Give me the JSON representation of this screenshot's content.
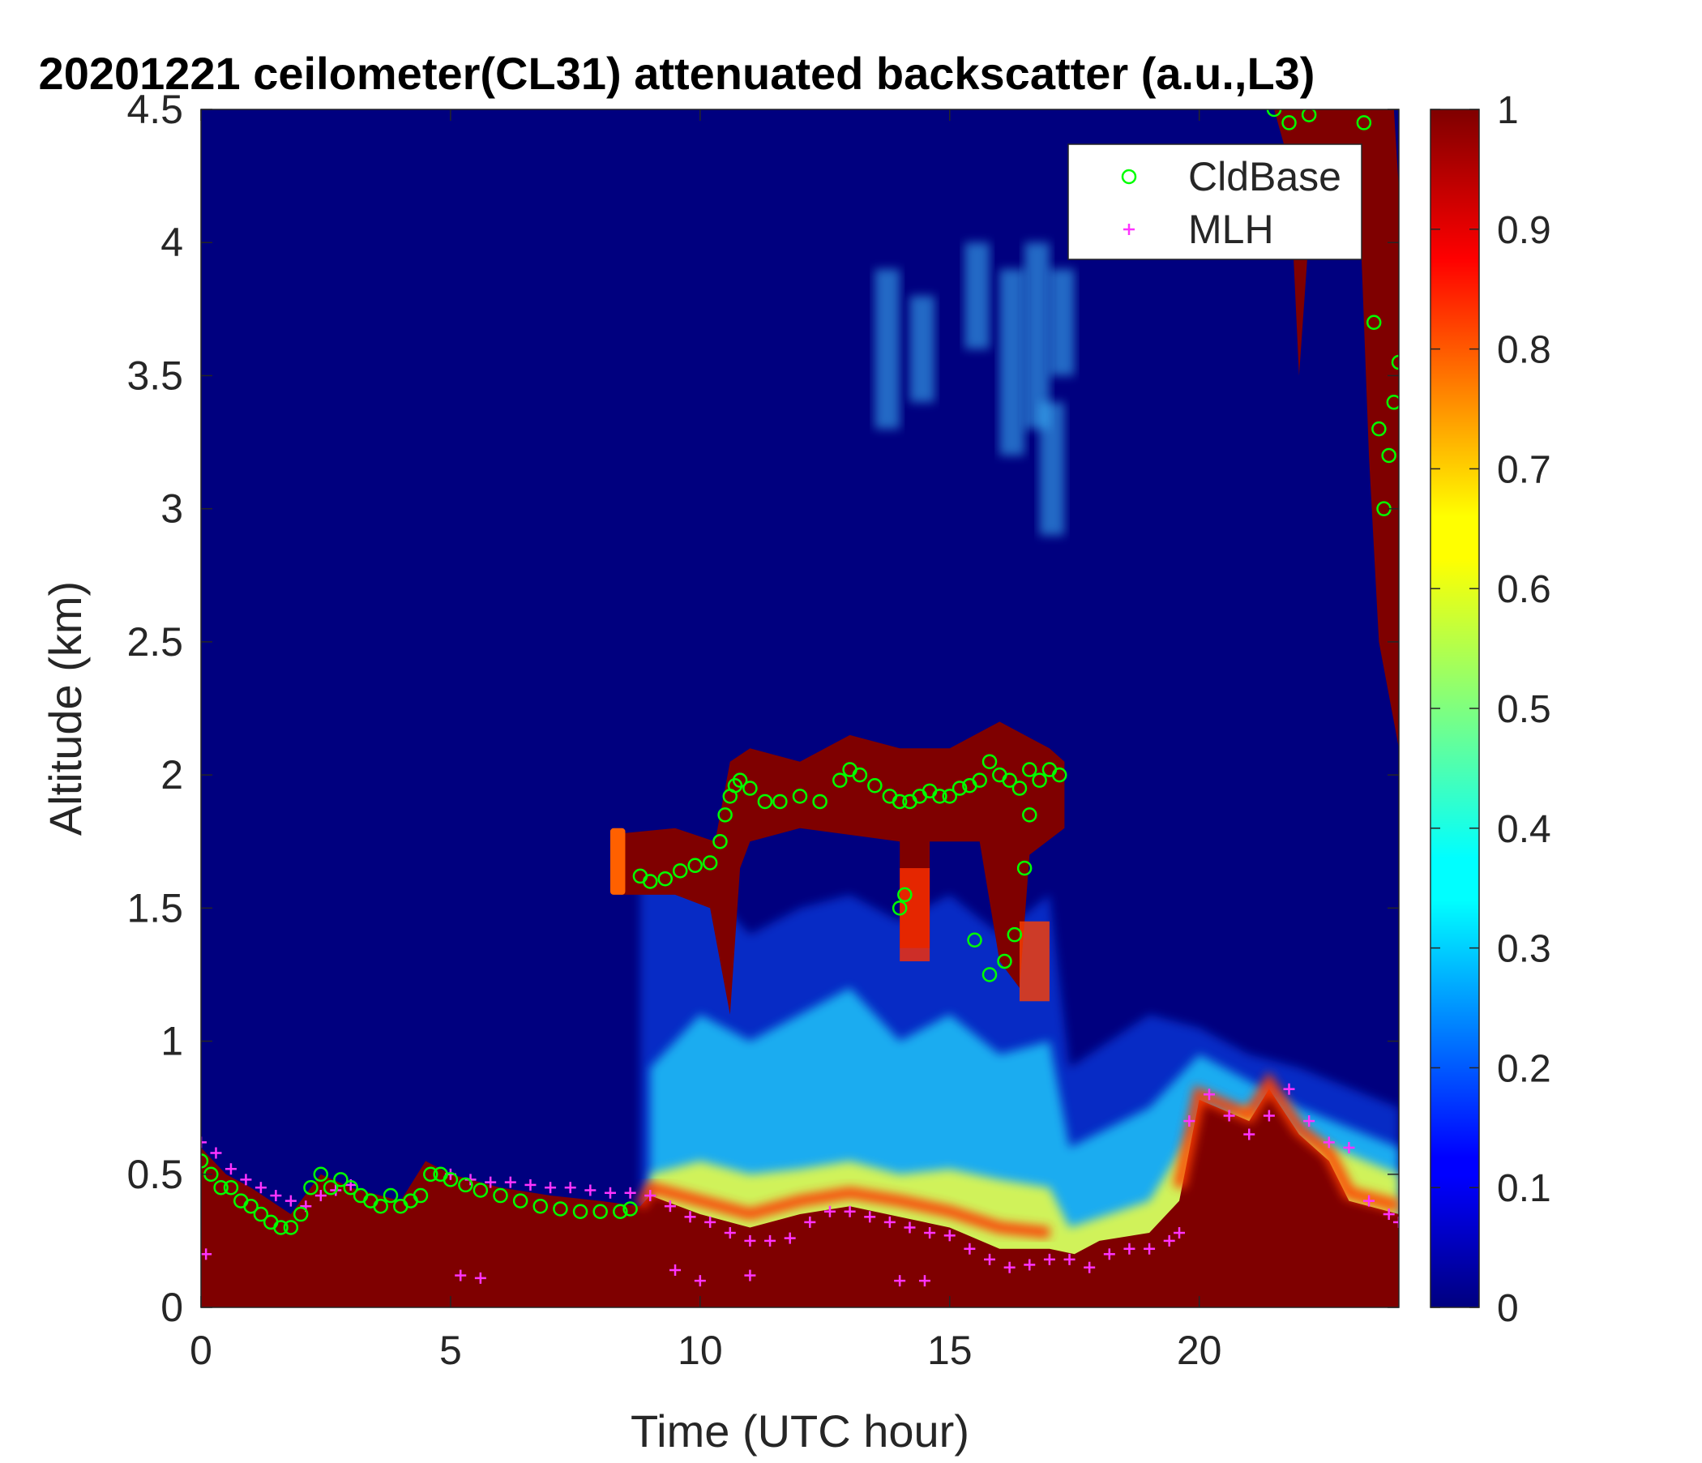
{
  "chart_data": {
    "type": "heatmap",
    "title": "20201221 ceilometer(CL31) attenuated backscatter (a.u.,L3)",
    "xlabel": "Time (UTC hour)",
    "ylabel": "Altitude (km)",
    "xlim": [
      0,
      24
    ],
    "ylim": [
      0,
      4.5
    ],
    "xticks": [
      0,
      5,
      10,
      15,
      20
    ],
    "xtick_labels": [
      "0",
      "5",
      "10",
      "15",
      "20"
    ],
    "yticks": [
      0,
      0.5,
      1,
      1.5,
      2,
      2.5,
      3,
      3.5,
      4,
      4.5
    ],
    "ytick_labels": [
      "0",
      "0.5",
      "1",
      "1.5",
      "2",
      "2.5",
      "3",
      "3.5",
      "4",
      "4.5"
    ],
    "colorbar": {
      "colormap": "jet",
      "clim": [
        0,
        1
      ],
      "ticks": [
        0,
        0.1,
        0.2,
        0.3,
        0.4,
        0.5,
        0.6,
        0.7,
        0.8,
        0.9,
        1
      ],
      "tick_labels": [
        "0",
        "0.1",
        "0.2",
        "0.3",
        "0.4",
        "0.5",
        "0.6",
        "0.7",
        "0.8",
        "0.9",
        "1"
      ]
    },
    "legend": {
      "placement": "top-right",
      "entries": [
        "CldBase",
        "MLH"
      ]
    },
    "series": [
      {
        "name": "CldBase",
        "marker": "circle",
        "color": "#00ff00",
        "x": [
          0.0,
          0.2,
          0.4,
          0.6,
          0.8,
          1.0,
          1.2,
          1.4,
          1.6,
          1.8,
          2.0,
          2.2,
          2.4,
          2.6,
          2.8,
          3.0,
          3.2,
          3.4,
          3.6,
          3.8,
          4.0,
          4.2,
          4.4,
          4.6,
          4.8,
          5.0,
          5.3,
          5.6,
          6.0,
          6.4,
          6.8,
          7.2,
          7.6,
          8.0,
          8.4,
          8.6,
          8.8,
          9.0,
          9.3,
          9.6,
          9.9,
          10.2,
          10.4,
          10.5,
          10.6,
          10.7,
          10.8,
          11.0,
          11.3,
          11.6,
          12.0,
          12.4,
          12.8,
          13.0,
          13.2,
          13.5,
          13.8,
          14.0,
          14.2,
          14.4,
          14.6,
          14.8,
          15.0,
          15.2,
          15.4,
          15.6,
          15.8,
          16.0,
          16.2,
          16.4,
          16.6,
          16.8,
          17.0,
          17.2,
          14.0,
          14.1,
          15.5,
          15.8,
          16.1,
          16.3,
          16.5,
          16.6,
          21.5,
          21.8,
          22.2,
          23.3,
          23.5,
          23.6,
          23.7,
          23.8,
          23.9,
          24.0
        ],
        "y": [
          0.55,
          0.5,
          0.45,
          0.45,
          0.4,
          0.38,
          0.35,
          0.32,
          0.3,
          0.3,
          0.35,
          0.45,
          0.5,
          0.45,
          0.48,
          0.45,
          0.42,
          0.4,
          0.38,
          0.42,
          0.38,
          0.4,
          0.42,
          0.5,
          0.5,
          0.48,
          0.46,
          0.44,
          0.42,
          0.4,
          0.38,
          0.37,
          0.36,
          0.36,
          0.36,
          0.37,
          1.62,
          1.6,
          1.61,
          1.64,
          1.66,
          1.67,
          1.75,
          1.85,
          1.92,
          1.96,
          1.98,
          1.95,
          1.9,
          1.9,
          1.92,
          1.9,
          1.98,
          2.02,
          2.0,
          1.96,
          1.92,
          1.9,
          1.9,
          1.92,
          1.94,
          1.92,
          1.92,
          1.95,
          1.96,
          1.98,
          2.05,
          2.0,
          1.98,
          1.95,
          2.02,
          1.98,
          2.02,
          2.0,
          1.5,
          1.55,
          1.38,
          1.25,
          1.3,
          1.4,
          1.65,
          1.85,
          4.5,
          4.45,
          4.48,
          4.45,
          3.7,
          3.3,
          3.0,
          3.2,
          3.4,
          3.55
        ],
        "notes": ""
      },
      {
        "name": "MLH",
        "marker": "plus",
        "color": "#ff33ff",
        "x": [
          0.0,
          0.3,
          0.6,
          0.9,
          1.2,
          1.5,
          1.8,
          2.1,
          2.4,
          2.7,
          3.0,
          5.0,
          5.4,
          5.8,
          6.2,
          6.6,
          7.0,
          7.4,
          7.8,
          8.2,
          8.6,
          9.0,
          9.4,
          9.8,
          10.2,
          10.6,
          11.0,
          11.4,
          11.8,
          12.2,
          12.6,
          13.0,
          13.4,
          13.8,
          14.2,
          14.6,
          15.0,
          15.4,
          15.8,
          16.2,
          16.6,
          17.0,
          17.4,
          17.8,
          18.2,
          18.6,
          19.0,
          19.4,
          19.6,
          19.8,
          20.2,
          20.6,
          21.0,
          21.4,
          21.8,
          22.2,
          22.6,
          23.0,
          23.4,
          23.8,
          24.0,
          0.1,
          5.2,
          5.6,
          14.0,
          14.5,
          9.5,
          10.0,
          11.0
        ],
        "y": [
          0.62,
          0.58,
          0.52,
          0.48,
          0.45,
          0.42,
          0.4,
          0.38,
          0.42,
          0.44,
          0.46,
          0.5,
          0.48,
          0.47,
          0.47,
          0.46,
          0.45,
          0.45,
          0.44,
          0.43,
          0.43,
          0.42,
          0.38,
          0.34,
          0.32,
          0.28,
          0.25,
          0.25,
          0.26,
          0.32,
          0.36,
          0.36,
          0.34,
          0.32,
          0.3,
          0.28,
          0.27,
          0.22,
          0.18,
          0.15,
          0.16,
          0.18,
          0.18,
          0.15,
          0.2,
          0.22,
          0.22,
          0.25,
          0.28,
          0.7,
          0.8,
          0.72,
          0.65,
          0.72,
          0.82,
          0.7,
          0.62,
          0.6,
          0.4,
          0.35,
          0.32,
          0.2,
          0.12,
          0.11,
          0.1,
          0.1,
          0.14,
          0.1,
          0.12
        ],
        "notes": ""
      }
    ]
  },
  "colors": {
    "background": "#00007f",
    "cloudbase_marker": "#00ff00",
    "mlh_marker": "#ff33ff"
  }
}
